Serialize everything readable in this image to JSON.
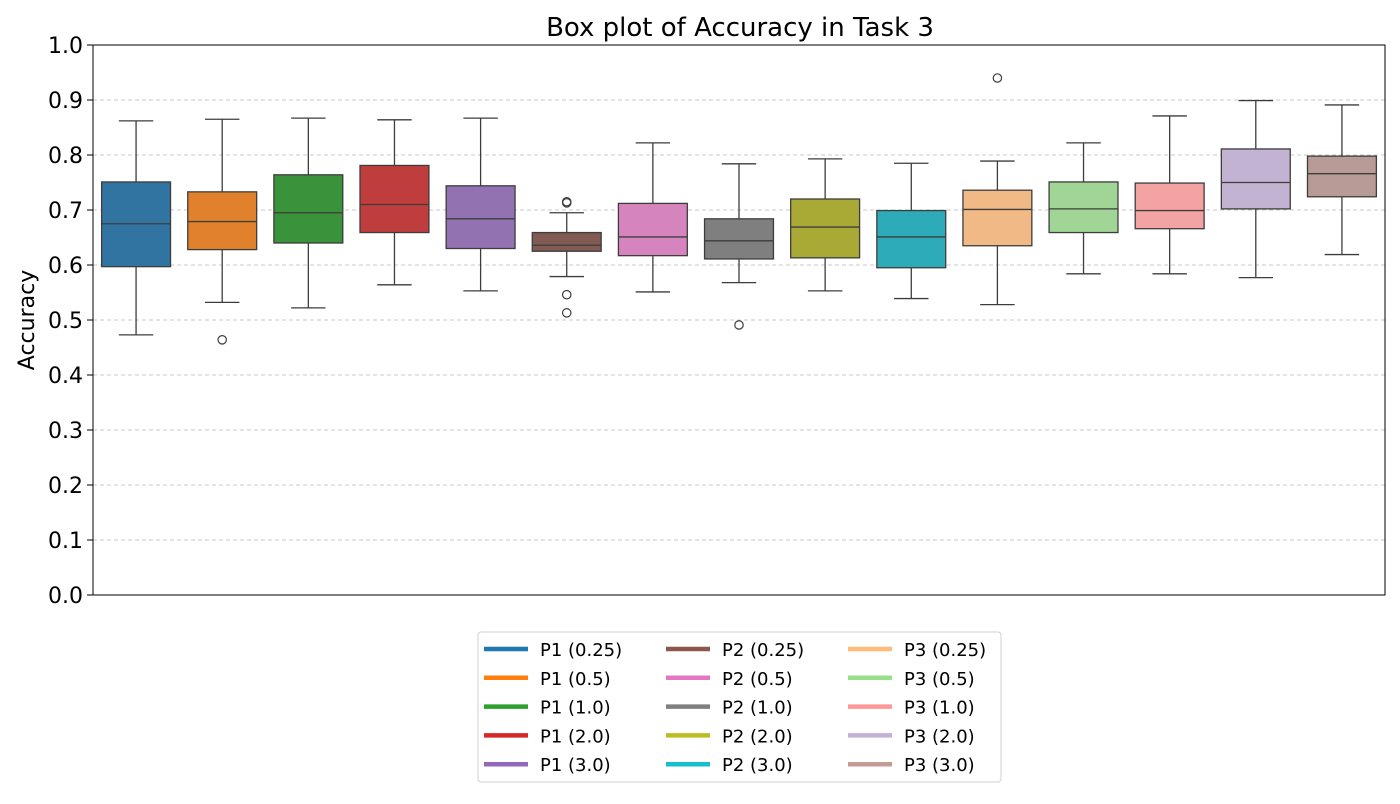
{
  "chart_data": {
    "type": "box",
    "title": "Box plot of Accuracy in Task 3",
    "xlabel": "",
    "ylabel": "Accuracy",
    "ylim": [
      0.0,
      1.0
    ],
    "yticks": [
      "0.0",
      "0.1",
      "0.2",
      "0.3",
      "0.4",
      "0.5",
      "0.6",
      "0.7",
      "0.8",
      "0.9",
      "1.0"
    ],
    "grid": "y-dashed",
    "legend": {
      "placement": "bottom-center",
      "columns": 3
    },
    "series": [
      {
        "name": "P1 (0.25)",
        "color": "#1f77b4",
        "box": "#3274a1",
        "whisker_low": 0.473,
        "q1": 0.597,
        "median": 0.675,
        "q3": 0.751,
        "whisker_high": 0.862,
        "outliers": []
      },
      {
        "name": "P1 (0.5)",
        "color": "#ff7f0e",
        "box": "#e1812c",
        "whisker_low": 0.532,
        "q1": 0.628,
        "median": 0.679,
        "q3": 0.733,
        "whisker_high": 0.865,
        "outliers": [
          0.464
        ]
      },
      {
        "name": "P1 (1.0)",
        "color": "#2ca02c",
        "box": "#3a923a",
        "whisker_low": 0.522,
        "q1": 0.64,
        "median": 0.695,
        "q3": 0.764,
        "whisker_high": 0.867,
        "outliers": []
      },
      {
        "name": "P1 (2.0)",
        "color": "#d62728",
        "box": "#c03d3e",
        "whisker_low": 0.564,
        "q1": 0.659,
        "median": 0.71,
        "q3": 0.781,
        "whisker_high": 0.864,
        "outliers": []
      },
      {
        "name": "P1 (3.0)",
        "color": "#9467bd",
        "box": "#9372b2",
        "whisker_low": 0.553,
        "q1": 0.63,
        "median": 0.684,
        "q3": 0.744,
        "whisker_high": 0.867,
        "outliers": []
      },
      {
        "name": "P2 (0.25)",
        "color": "#8c564b",
        "box": "#845b53",
        "whisker_low": 0.579,
        "q1": 0.625,
        "median": 0.636,
        "q3": 0.659,
        "whisker_high": 0.695,
        "outliers": [
          0.713,
          0.715,
          0.546,
          0.513
        ]
      },
      {
        "name": "P2 (0.5)",
        "color": "#e377c2",
        "box": "#d684bd",
        "whisker_low": 0.551,
        "q1": 0.617,
        "median": 0.651,
        "q3": 0.712,
        "whisker_high": 0.822,
        "outliers": []
      },
      {
        "name": "P2 (1.0)",
        "color": "#7f7f7f",
        "box": "#7f7f7f",
        "whisker_low": 0.568,
        "q1": 0.611,
        "median": 0.644,
        "q3": 0.684,
        "whisker_high": 0.784,
        "outliers": [
          0.491
        ]
      },
      {
        "name": "P2 (2.0)",
        "color": "#bcbd22",
        "box": "#a9aa35",
        "whisker_low": 0.553,
        "q1": 0.613,
        "median": 0.669,
        "q3": 0.72,
        "whisker_high": 0.793,
        "outliers": []
      },
      {
        "name": "P2 (3.0)",
        "color": "#17becf",
        "box": "#2eabb8",
        "whisker_low": 0.539,
        "q1": 0.595,
        "median": 0.651,
        "q3": 0.699,
        "whisker_high": 0.785,
        "outliers": []
      },
      {
        "name": "P3 (0.25)",
        "color": "#ffbb78",
        "box": "#f0b986",
        "whisker_low": 0.528,
        "q1": 0.635,
        "median": 0.701,
        "q3": 0.736,
        "whisker_high": 0.789,
        "outliers": [
          0.94
        ]
      },
      {
        "name": "P3 (0.5)",
        "color": "#98df8a",
        "box": "#a0d595",
        "whisker_low": 0.584,
        "q1": 0.659,
        "median": 0.702,
        "q3": 0.751,
        "whisker_high": 0.822,
        "outliers": []
      },
      {
        "name": "P3 (1.0)",
        "color": "#ff9896",
        "box": "#f2a3a2",
        "whisker_low": 0.584,
        "q1": 0.666,
        "median": 0.699,
        "q3": 0.749,
        "whisker_high": 0.871,
        "outliers": []
      },
      {
        "name": "P3 (2.0)",
        "color": "#c5b0d5",
        "box": "#c3b3d2",
        "whisker_low": 0.577,
        "q1": 0.702,
        "median": 0.75,
        "q3": 0.811,
        "whisker_high": 0.899,
        "outliers": []
      },
      {
        "name": "P3 (3.0)",
        "color": "#c49c94",
        "box": "#b89b96",
        "whisker_low": 0.619,
        "q1": 0.724,
        "median": 0.766,
        "q3": 0.798,
        "whisker_high": 0.891,
        "outliers": []
      }
    ]
  }
}
